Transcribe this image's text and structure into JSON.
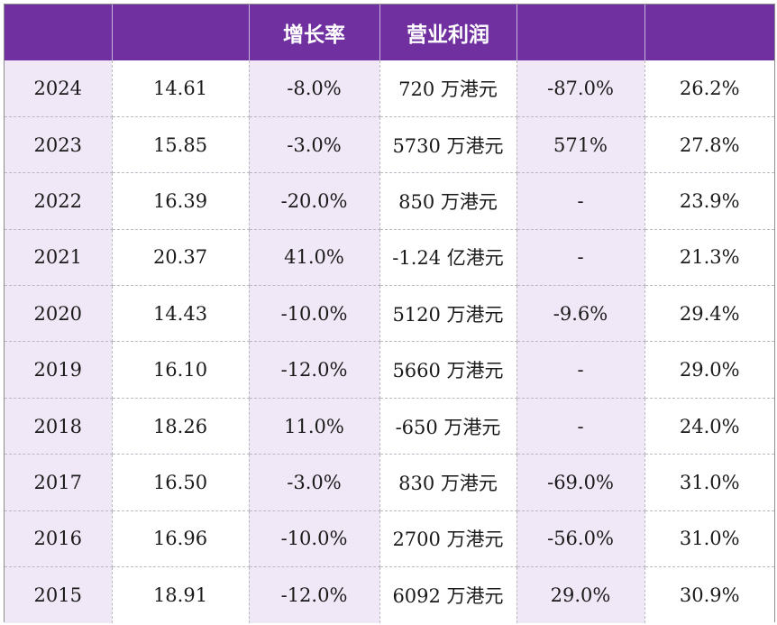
{
  "header": [
    "",
    "",
    "增长率",
    "营业利润",
    "",
    ""
  ],
  "rows": [
    [
      "2024",
      "14.61",
      "-8.0%",
      "720 万港元",
      "-87.0%",
      "26.2%"
    ],
    [
      "2023",
      "15.85",
      "-3.0%",
      "5730 万港元",
      "571%",
      "27.8%"
    ],
    [
      "2022",
      "16.39",
      "-20.0%",
      "850 万港元",
      "-",
      "23.9%"
    ],
    [
      "2021",
      "20.37",
      "41.0%",
      "-1.24 亿港元",
      "-",
      "21.3%"
    ],
    [
      "2020",
      "14.43",
      "-10.0%",
      "5120 万港元",
      "-9.6%",
      "29.4%"
    ],
    [
      "2019",
      "16.10",
      "-12.0%",
      "5660 万港元",
      "-",
      "29.0%"
    ],
    [
      "2018",
      "18.26",
      "11.0%",
      "-650 万港元",
      "-",
      "24.0%"
    ],
    [
      "2017",
      "16.50",
      "-3.0%",
      "830 万港元",
      "-69.0%",
      "31.0%"
    ],
    [
      "2016",
      "16.96",
      "-10.0%",
      "2700 万港元",
      "-56.0%",
      "31.0%"
    ],
    [
      "2015",
      "18.91",
      "-12.0%",
      "6092 万港元",
      "29.0%",
      "30.9%"
    ]
  ],
  "colors": {
    "header_bg": "#7030a0",
    "header_text": "#ffffff",
    "shaded_col_bg": "#f1e8f7",
    "grid_line": "#b9b9c4"
  }
}
